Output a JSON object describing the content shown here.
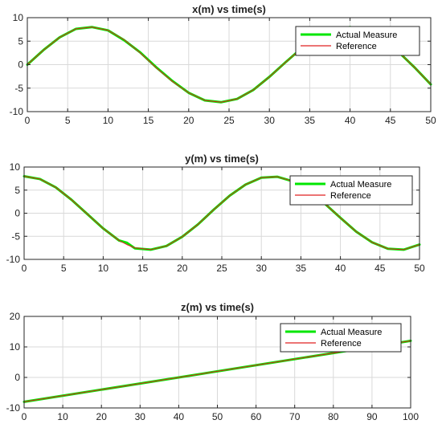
{
  "colors": {
    "actual": "#00e600",
    "reference": "#e02020",
    "grid": "#d9d9d9",
    "axes": "#262626"
  },
  "chart_data": [
    {
      "type": "line",
      "title": "x(m) vs time(s)",
      "xlabel": "",
      "ylabel": "",
      "xlim": [
        0,
        50
      ],
      "ylim": [
        -10,
        10
      ],
      "xticks": [
        0,
        5,
        10,
        15,
        20,
        25,
        30,
        35,
        40,
        45,
        50
      ],
      "xtick_labels": [
        "0",
        "5",
        "10",
        "15",
        "20",
        "25",
        "30",
        "35",
        "40",
        "45",
        "50"
      ],
      "yticks": [
        -10,
        -5,
        0,
        5,
        10
      ],
      "ytick_labels": [
        "-10",
        "-5",
        "0",
        "5",
        "10"
      ],
      "grid": true,
      "legend_position": "top-right",
      "series": [
        {
          "name": "Actual Measure",
          "x": [
            0,
            2,
            4,
            6,
            8,
            10,
            12,
            14,
            16,
            18,
            20,
            22,
            24,
            26,
            28,
            30,
            32,
            34,
            36,
            38,
            40,
            42,
            44,
            46,
            48,
            50
          ],
          "y": [
            0,
            3.1,
            5.8,
            7.6,
            8,
            7.3,
            5.2,
            2.6,
            -0.6,
            -3.5,
            -6,
            -7.6,
            -8,
            -7.3,
            -5.4,
            -2.6,
            0.5,
            3.5,
            5.9,
            7.5,
            8,
            7.3,
            5.5,
            2.7,
            -0.6,
            -4.2
          ]
        },
        {
          "name": "Reference",
          "x": [
            0,
            2,
            4,
            6,
            8,
            10,
            12,
            14,
            16,
            18,
            20,
            22,
            24,
            26,
            28,
            30,
            32,
            34,
            36,
            38,
            40,
            42,
            44,
            46,
            48,
            50
          ],
          "y": [
            0,
            3.1,
            5.8,
            7.6,
            8,
            7.3,
            5.3,
            2.5,
            -0.7,
            -3.6,
            -6,
            -7.6,
            -8,
            -7.3,
            -5.4,
            -2.6,
            0.5,
            3.5,
            5.9,
            7.5,
            8,
            7.3,
            5.5,
            2.7,
            -0.6,
            -4.2
          ]
        }
      ]
    },
    {
      "type": "line",
      "title": "y(m) vs time(s)",
      "xlabel": "",
      "ylabel": "",
      "xlim": [
        0,
        50
      ],
      "ylim": [
        -10,
        10
      ],
      "xticks": [
        0,
        5,
        10,
        15,
        20,
        25,
        30,
        35,
        40,
        45,
        50
      ],
      "xtick_labels": [
        "0",
        "5",
        "10",
        "15",
        "20",
        "25",
        "30",
        "35",
        "40",
        "45",
        "50"
      ],
      "yticks": [
        -10,
        -5,
        0,
        5,
        10
      ],
      "ytick_labels": [
        "-10",
        "-5",
        "0",
        "5",
        "10"
      ],
      "grid": true,
      "legend_position": "top-right",
      "series": [
        {
          "name": "Actual Measure",
          "x": [
            0,
            2,
            4,
            6,
            8,
            10,
            12,
            13,
            14,
            16,
            18,
            20,
            22,
            24,
            26,
            28,
            30,
            32,
            34,
            36,
            38,
            40,
            42,
            44,
            46,
            48,
            50
          ],
          "y": [
            8,
            7.4,
            5.6,
            2.9,
            -0.2,
            -3.3,
            -5.9,
            -6.4,
            -7.6,
            -7.9,
            -7.1,
            -5.1,
            -2.4,
            0.8,
            3.8,
            6.2,
            7.7,
            7.9,
            6.9,
            4.8,
            2.1,
            -1,
            -4,
            -6.3,
            -7.7,
            -7.9,
            -6.8
          ]
        },
        {
          "name": "Reference",
          "x": [
            0,
            2,
            4,
            6,
            8,
            10,
            12,
            13,
            14,
            16,
            18,
            20,
            22,
            24,
            26,
            28,
            30,
            32,
            34,
            36,
            38,
            40,
            42,
            44,
            46,
            48,
            50
          ],
          "y": [
            8,
            7.4,
            5.6,
            2.9,
            -0.2,
            -3.3,
            -5.9,
            -6.8,
            -7.5,
            -7.9,
            -7.1,
            -5.1,
            -2.4,
            0.8,
            3.8,
            6.2,
            7.7,
            7.9,
            6.9,
            4.8,
            2.1,
            -1,
            -4,
            -6.3,
            -7.7,
            -7.9,
            -6.8
          ]
        }
      ]
    },
    {
      "type": "line",
      "title": "z(m) vs time(s)",
      "xlabel": "",
      "ylabel": "",
      "xlim": [
        0,
        100
      ],
      "ylim": [
        -10,
        20
      ],
      "xticks": [
        0,
        10,
        20,
        30,
        40,
        50,
        60,
        70,
        80,
        90,
        100
      ],
      "xtick_labels": [
        "0",
        "10",
        "20",
        "30",
        "40",
        "50",
        "60",
        "70",
        "80",
        "90",
        "100"
      ],
      "yticks": [
        -10,
        0,
        10,
        20
      ],
      "ytick_labels": [
        "-10",
        "0",
        "10",
        "20"
      ],
      "grid": true,
      "legend_position": "top-right",
      "series": [
        {
          "name": "Actual Measure",
          "x": [
            0,
            100
          ],
          "y": [
            -8,
            12
          ]
        },
        {
          "name": "Reference",
          "x": [
            0,
            100
          ],
          "y": [
            -8,
            12
          ]
        }
      ]
    }
  ]
}
